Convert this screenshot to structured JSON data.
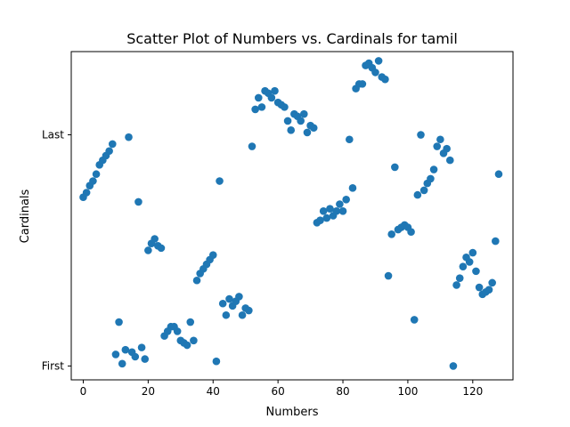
{
  "chart_data": {
    "type": "scatter",
    "title": "Scatter Plot of Numbers vs. Cardinals for tamil",
    "xlabel": "Numbers",
    "ylabel": "Cardinals",
    "xlim": [
      -3.7,
      132.4
    ],
    "ylim": [
      -0.06,
      1.36
    ],
    "xticks": [
      0,
      20,
      40,
      60,
      80,
      100,
      120
    ],
    "xtick_labels": [
      "0",
      "20",
      "40",
      "60",
      "80",
      "100",
      "120"
    ],
    "yticks": [
      0,
      1
    ],
    "ytick_labels": [
      "First",
      "Last"
    ],
    "marker_color": "#1f77b4",
    "grid": false,
    "legend": "none",
    "series": [
      {
        "x": [
          0,
          1,
          2,
          3,
          4,
          5,
          6,
          7,
          8,
          9,
          10,
          11,
          12,
          13,
          14,
          15,
          16,
          17,
          18,
          19,
          20,
          21,
          22,
          23,
          24,
          25,
          26,
          27,
          28,
          29,
          30,
          31,
          32,
          33,
          34,
          35,
          36,
          37,
          38,
          39,
          40,
          41,
          42,
          43,
          44,
          45,
          46,
          47,
          48,
          49,
          50,
          51,
          52,
          53,
          54,
          55,
          56,
          57,
          58,
          59,
          60,
          61,
          62,
          63,
          64,
          65,
          66,
          67,
          68,
          69,
          70,
          71,
          72,
          73,
          74,
          75,
          76,
          77,
          78,
          79,
          80,
          81,
          82,
          83,
          84,
          85,
          86,
          87,
          88,
          89,
          90,
          91,
          92,
          93,
          94,
          95,
          96,
          97,
          98,
          99,
          100,
          101,
          102,
          103,
          104,
          105,
          106,
          107,
          108,
          109,
          110,
          111,
          112,
          113,
          114,
          115,
          116,
          117,
          118,
          119,
          120,
          121,
          122,
          123,
          124,
          125,
          126,
          127,
          128
        ],
        "y": [
          0.73,
          0.75,
          0.78,
          0.8,
          0.83,
          0.87,
          0.89,
          0.91,
          0.93,
          0.96,
          0.05,
          0.19,
          0.01,
          0.07,
          0.99,
          0.06,
          0.04,
          0.71,
          0.08,
          0.03,
          0.5,
          0.53,
          0.55,
          0.52,
          0.51,
          0.13,
          0.15,
          0.17,
          0.17,
          0.15,
          0.11,
          0.1,
          0.09,
          0.19,
          0.11,
          0.37,
          0.4,
          0.42,
          0.44,
          0.46,
          0.48,
          0.02,
          0.8,
          0.27,
          0.22,
          0.29,
          0.26,
          0.28,
          0.3,
          0.22,
          0.25,
          0.24,
          0.95,
          1.11,
          1.16,
          1.12,
          1.19,
          1.18,
          1.16,
          1.19,
          1.14,
          1.13,
          1.12,
          1.06,
          1.02,
          1.09,
          1.08,
          1.06,
          1.09,
          1.01,
          1.04,
          1.03,
          0.62,
          0.63,
          0.67,
          0.64,
          0.68,
          0.65,
          0.67,
          0.7,
          0.67,
          0.72,
          0.98,
          0.77,
          1.2,
          1.22,
          1.22,
          1.3,
          1.31,
          1.29,
          1.27,
          1.32,
          1.25,
          1.24,
          0.39,
          0.57,
          0.86,
          0.59,
          0.6,
          0.61,
          0.6,
          0.58,
          0.2,
          0.74,
          1.0,
          0.76,
          0.79,
          0.81,
          0.85,
          0.95,
          0.98,
          0.92,
          0.94,
          0.89,
          0.0,
          0.35,
          0.38,
          0.43,
          0.47,
          0.45,
          0.49,
          0.41,
          0.34,
          0.31,
          0.32,
          0.33,
          0.36,
          0.54,
          0.83
        ]
      }
    ]
  }
}
